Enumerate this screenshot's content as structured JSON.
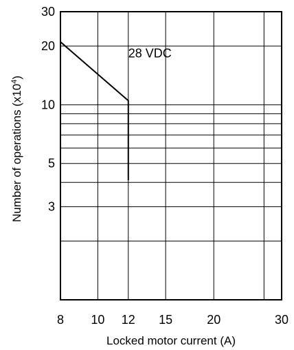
{
  "chart_data": {
    "type": "line",
    "title": "",
    "xlabel": "Locked motor current (A)",
    "ylabel_main": "Number of operations (x10",
    "ylabel_sup": "4",
    "ylabel_close": ")",
    "xscale": "log",
    "yscale": "log",
    "xlim": [
      8,
      30
    ],
    "ylim": [
      1,
      30
    ],
    "x_tick_labels": [
      "8",
      "10",
      "12",
      "15",
      "20",
      "30"
    ],
    "x_ticks": [
      8,
      10,
      12,
      15,
      20,
      30
    ],
    "x_grid": [
      10,
      12,
      15,
      20,
      27
    ],
    "y_tick_labels": [
      "30",
      "20",
      "10",
      "5",
      "3"
    ],
    "y_ticks": [
      30,
      20,
      10,
      5,
      3
    ],
    "y_grid": [
      20,
      10,
      9,
      8,
      7,
      6,
      5,
      4,
      3,
      2
    ],
    "grid": true,
    "annotations": [
      {
        "text": "28 VDC",
        "x": 12.0,
        "y": 17.5
      }
    ],
    "series": [
      {
        "x": [
          8,
          12,
          12
        ],
        "y": [
          21,
          10.5,
          4.1
        ]
      }
    ]
  }
}
